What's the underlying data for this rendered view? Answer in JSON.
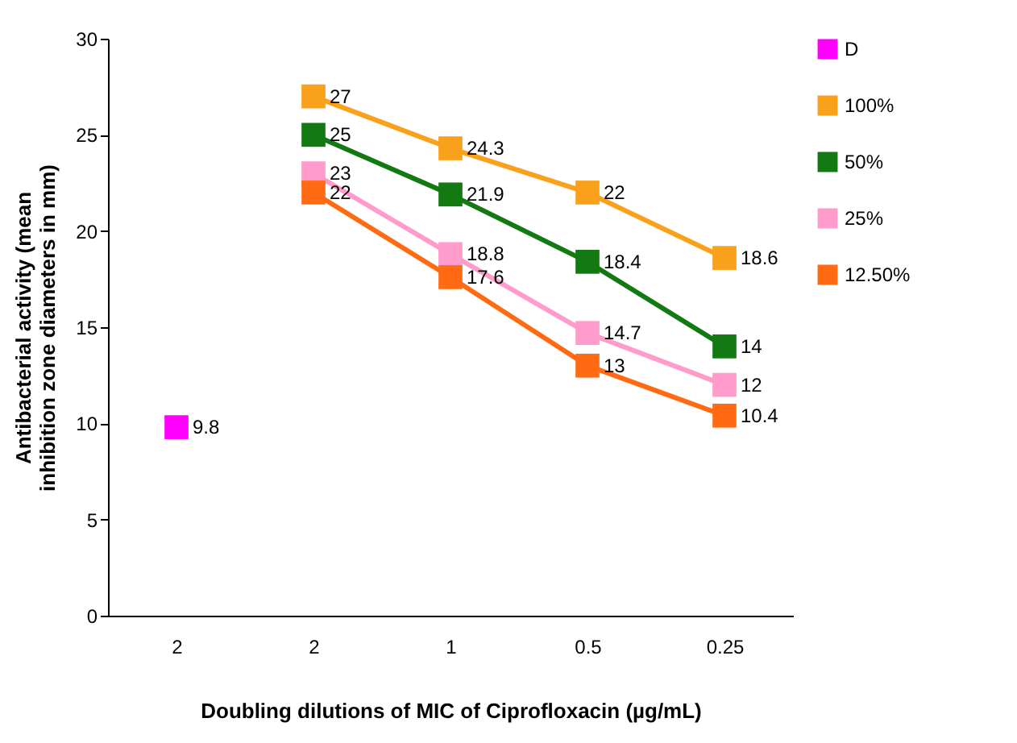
{
  "chart_data": {
    "type": "line",
    "xlabel": "Doubling dilutions of MIC of Ciprofloxacin (µg/mL)",
    "ylabel": "Antibacterial activity (mean inhibition zone diameters in mm)",
    "categories": [
      "2",
      "2",
      "1",
      "0.5",
      "0.25"
    ],
    "series": [
      {
        "name": "D",
        "color": "#ff00ff",
        "values": [
          9.8,
          null,
          null,
          null,
          null
        ]
      },
      {
        "name": "100%",
        "color": "#f9a11b",
        "values": [
          null,
          27,
          24.3,
          22,
          18.6
        ]
      },
      {
        "name": "50%",
        "color": "#137a13",
        "values": [
          null,
          25,
          21.9,
          18.4,
          14
        ]
      },
      {
        "name": "25%",
        "color": "#ff9ccc",
        "values": [
          null,
          23,
          18.8,
          14.7,
          12
        ]
      },
      {
        "name": "12.50%",
        "color": "#ff6a13",
        "values": [
          null,
          22,
          17.6,
          13,
          10.4
        ]
      }
    ],
    "ylim": [
      0,
      30
    ],
    "yticks": [
      0,
      5,
      10,
      15,
      20,
      25,
      30
    ],
    "grid": false,
    "legend": "right",
    "marker": "square",
    "data_labels": true,
    "line_style": "solid"
  }
}
